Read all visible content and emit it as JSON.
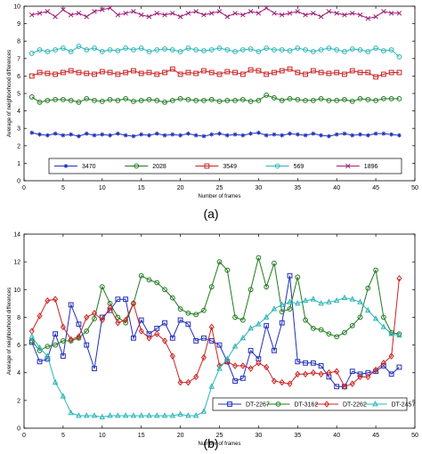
{
  "chart_data": [
    {
      "type": "line",
      "panel_label": "(a)",
      "xlabel": "Number of frames",
      "ylabel": "Average of neighborhood differences",
      "xlim": [
        0,
        50
      ],
      "ylim": [
        0,
        10
      ],
      "xticks": [
        0,
        5,
        10,
        15,
        20,
        25,
        30,
        35,
        40,
        45,
        50
      ],
      "yticks": [
        0,
        1,
        2,
        3,
        4,
        5,
        6,
        7,
        8,
        9,
        10
      ],
      "grid": false,
      "legend_position": "bottom",
      "x": [
        1,
        2,
        3,
        4,
        5,
        6,
        7,
        8,
        9,
        10,
        11,
        12,
        13,
        14,
        15,
        16,
        17,
        18,
        19,
        20,
        21,
        22,
        23,
        24,
        25,
        26,
        27,
        28,
        29,
        30,
        31,
        32,
        33,
        34,
        35,
        36,
        37,
        38,
        39,
        40,
        41,
        42,
        43,
        44,
        45,
        46,
        47,
        48
      ],
      "series": [
        {
          "name": "3470",
          "color": "#1f2fb8",
          "marker": "star",
          "values": [
            2.75,
            2.65,
            2.6,
            2.7,
            2.6,
            2.65,
            2.55,
            2.7,
            2.6,
            2.65,
            2.6,
            2.7,
            2.6,
            2.55,
            2.65,
            2.6,
            2.7,
            2.6,
            2.65,
            2.6,
            2.7,
            2.6,
            2.55,
            2.65,
            2.7,
            2.6,
            2.65,
            2.6,
            2.7,
            2.75,
            2.6,
            2.65,
            2.6,
            2.7,
            2.65,
            2.6,
            2.7,
            2.6,
            2.55,
            2.65,
            2.7,
            2.6,
            2.65,
            2.6,
            2.7,
            2.7,
            2.65,
            2.6
          ]
        },
        {
          "name": "2028",
          "color": "#1f7a1f",
          "marker": "circle",
          "values": [
            4.8,
            4.5,
            4.6,
            4.65,
            4.65,
            4.6,
            4.5,
            4.7,
            4.6,
            4.55,
            4.65,
            4.6,
            4.7,
            4.55,
            4.6,
            4.65,
            4.6,
            4.5,
            4.6,
            4.7,
            4.65,
            4.6,
            4.6,
            4.65,
            4.55,
            4.6,
            4.6,
            4.65,
            4.55,
            4.6,
            4.9,
            4.75,
            4.6,
            4.7,
            4.65,
            4.6,
            4.6,
            4.7,
            4.6,
            4.6,
            4.65,
            4.55,
            4.7,
            4.65,
            4.6,
            4.7,
            4.7,
            4.7
          ]
        },
        {
          "name": "3549",
          "color": "#cc2222",
          "marker": "square",
          "values": [
            6.0,
            6.2,
            6.15,
            6.1,
            6.2,
            6.3,
            6.2,
            6.15,
            6.1,
            6.25,
            6.2,
            6.1,
            6.2,
            6.3,
            6.15,
            6.2,
            6.1,
            6.2,
            6.4,
            6.1,
            6.2,
            6.15,
            6.3,
            6.2,
            6.1,
            6.25,
            6.2,
            6.1,
            6.35,
            6.3,
            6.1,
            6.2,
            6.3,
            6.4,
            6.2,
            6.1,
            6.3,
            6.2,
            6.15,
            6.2,
            6.1,
            6.3,
            6.2,
            6.2,
            5.95,
            6.1,
            6.2,
            6.2
          ]
        },
        {
          "name": "569",
          "color": "#2bb5b5",
          "marker": "circle",
          "values": [
            7.3,
            7.5,
            7.4,
            7.5,
            7.6,
            7.4,
            7.7,
            7.5,
            7.6,
            7.4,
            7.5,
            7.45,
            7.6,
            7.5,
            7.6,
            7.4,
            7.5,
            7.55,
            7.5,
            7.4,
            7.6,
            7.5,
            7.45,
            7.5,
            7.6,
            7.5,
            7.4,
            7.5,
            7.55,
            7.4,
            7.6,
            7.5,
            7.5,
            7.45,
            7.6,
            7.5,
            7.4,
            7.5,
            7.6,
            7.5,
            7.4,
            7.55,
            7.5,
            7.4,
            7.6,
            7.45,
            7.5,
            7.1
          ]
        },
        {
          "name": "1896",
          "color": "#a0207a",
          "marker": "x",
          "values": [
            9.5,
            9.6,
            9.7,
            9.4,
            9.8,
            9.5,
            9.6,
            9.4,
            9.7,
            9.8,
            9.9,
            9.5,
            9.6,
            9.7,
            9.5,
            9.4,
            9.6,
            9.5,
            9.6,
            9.4,
            9.6,
            9.7,
            9.5,
            9.6,
            9.7,
            9.4,
            9.6,
            9.5,
            9.7,
            9.6,
            9.9,
            9.6,
            9.5,
            9.6,
            9.7,
            9.5,
            9.6,
            9.4,
            9.7,
            9.6,
            9.5,
            9.6,
            9.5,
            9.3,
            9.4,
            9.7,
            9.6,
            9.6
          ]
        }
      ]
    },
    {
      "type": "line",
      "panel_label": "(b)",
      "xlabel": "Number of frames",
      "ylabel": "Average of neighborhood differences",
      "xlim": [
        0,
        50
      ],
      "ylim": [
        0,
        14
      ],
      "xticks": [
        0,
        5,
        10,
        15,
        20,
        25,
        30,
        35,
        40,
        45,
        50
      ],
      "yticks": [
        0,
        2,
        4,
        6,
        8,
        10,
        12,
        14
      ],
      "grid": false,
      "legend_position": "bottom",
      "x": [
        1,
        2,
        3,
        4,
        5,
        6,
        7,
        8,
        9,
        10,
        11,
        12,
        13,
        14,
        15,
        16,
        17,
        18,
        19,
        20,
        21,
        22,
        23,
        24,
        25,
        26,
        27,
        28,
        29,
        30,
        31,
        32,
        33,
        34,
        35,
        36,
        37,
        38,
        39,
        40,
        41,
        42,
        43,
        44,
        45,
        46,
        47,
        48
      ],
      "series": [
        {
          "name": "DT-2267",
          "color": "#1f2fb8",
          "marker": "square",
          "values": [
            6.2,
            4.8,
            5.0,
            6.8,
            5.2,
            8.9,
            7.5,
            6.0,
            4.3,
            8.0,
            8.5,
            9.3,
            9.3,
            6.5,
            7.8,
            6.8,
            7.2,
            7.6,
            6.5,
            7.8,
            7.5,
            6.3,
            6.5,
            6.3,
            6.0,
            4.8,
            3.4,
            3.6,
            5.6,
            5.0,
            7.4,
            5.6,
            7.6,
            11.0,
            4.8,
            4.7,
            4.7,
            4.5,
            3.7,
            3.0,
            3.0,
            4.1,
            3.9,
            4.0,
            4.1,
            4.5,
            3.9,
            4.4
          ]
        },
        {
          "name": "DT-3162",
          "color": "#1f7a1f",
          "marker": "circle",
          "values": [
            6.3,
            5.6,
            5.9,
            6.0,
            6.3,
            6.3,
            6.5,
            7.0,
            7.9,
            10.2,
            9.0,
            8.0,
            7.6,
            9.0,
            11.0,
            10.7,
            10.5,
            10.0,
            9.4,
            8.6,
            8.3,
            8.2,
            8.5,
            10.2,
            12.0,
            11.4,
            8.0,
            7.8,
            10.0,
            12.3,
            10.2,
            11.9,
            8.4,
            8.6,
            10.9,
            7.8,
            7.2,
            7.1,
            6.8,
            6.6,
            6.9,
            7.4,
            8.0,
            10.1,
            11.4,
            8.0,
            6.9,
            6.8
          ]
        },
        {
          "name": "DT-2262",
          "color": "#cc2222",
          "marker": "diamond",
          "values": [
            7.0,
            8.1,
            9.2,
            9.3,
            7.3,
            6.4,
            6.6,
            8.0,
            8.3,
            7.8,
            8.7,
            7.6,
            7.8,
            9.0,
            7.0,
            6.5,
            6.8,
            6.3,
            5.2,
            3.3,
            3.3,
            3.7,
            5.1,
            7.3,
            4.5,
            4.8,
            4.5,
            4.5,
            4.3,
            4.7,
            4.4,
            3.4,
            3.3,
            3.2,
            3.9,
            3.9,
            4.0,
            3.9,
            4.0,
            4.1,
            3.0,
            3.2,
            3.7,
            3.7,
            4.2,
            4.7,
            5.2,
            10.8
          ]
        },
        {
          "name": "DT-2457",
          "color": "#2bb5b5",
          "marker": "triangle",
          "values": [
            6.6,
            5.8,
            5.2,
            3.3,
            2.3,
            1.1,
            0.9,
            0.9,
            0.9,
            0.8,
            0.9,
            0.9,
            0.9,
            0.9,
            0.9,
            0.9,
            0.9,
            0.9,
            0.9,
            1.0,
            0.9,
            0.9,
            1.2,
            3.0,
            4.3,
            5.0,
            5.9,
            6.5,
            7.2,
            7.5,
            8.0,
            8.6,
            8.9,
            9.1,
            9.0,
            9.2,
            9.3,
            9.0,
            9.1,
            9.2,
            9.4,
            9.3,
            9.1,
            8.5,
            7.9,
            7.3,
            6.8,
            6.7
          ]
        }
      ]
    }
  ]
}
